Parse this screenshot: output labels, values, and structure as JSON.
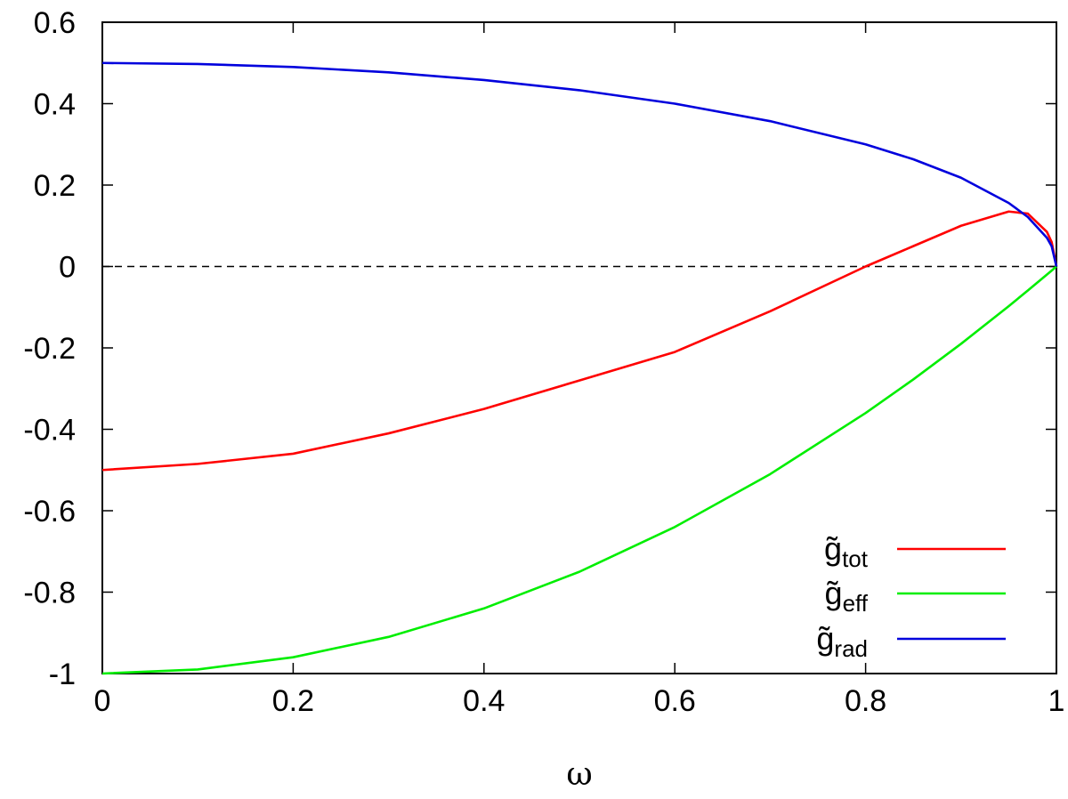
{
  "chart_data": {
    "type": "line",
    "xlabel": "ω",
    "ylabel": "",
    "xlim": [
      0,
      1
    ],
    "ylim": [
      -1,
      0.6
    ],
    "xticks": [
      "0",
      "0.2",
      "0.4",
      "0.6",
      "0.8",
      "1"
    ],
    "yticks": [
      "-1",
      "-0.8",
      "-0.6",
      "-0.4",
      "-0.2",
      "0",
      "0.2",
      "0.4",
      "0.6"
    ],
    "grid": false,
    "legend_position": "bottom-right",
    "reference_line": {
      "y": 0,
      "style": "dashed",
      "color": "#000000"
    },
    "x": [
      0,
      0.1,
      0.2,
      0.3,
      0.4,
      0.5,
      0.6,
      0.7,
      0.8,
      0.85,
      0.9,
      0.95,
      0.97,
      0.99,
      0.995,
      1.0
    ],
    "series": [
      {
        "name": "g̃tot",
        "label_base": "g̃",
        "label_sub": "tot",
        "color": "#ff0000",
        "values": [
          -0.5,
          -0.485,
          -0.46,
          -0.41,
          -0.35,
          -0.28,
          -0.21,
          -0.11,
          0.0,
          0.05,
          0.1,
          0.135,
          0.13,
          0.085,
          0.06,
          0.0
        ]
      },
      {
        "name": "g̃eff",
        "label_base": "g̃",
        "label_sub": "eff",
        "color": "#00ee00",
        "values": [
          -1.0,
          -0.99,
          -0.96,
          -0.91,
          -0.84,
          -0.75,
          -0.64,
          -0.51,
          -0.36,
          -0.2775,
          -0.19,
          -0.0975,
          -0.0591,
          -0.0199,
          -0.01,
          0.0
        ]
      },
      {
        "name": "g̃rad",
        "label_base": "g̃",
        "label_sub": "rad",
        "color": "#0000dd",
        "values": [
          0.5,
          0.4975,
          0.49,
          0.477,
          0.458,
          0.433,
          0.4,
          0.357,
          0.3,
          0.2634,
          0.218,
          0.156,
          0.1216,
          0.0705,
          0.0499,
          0.0
        ]
      }
    ]
  }
}
